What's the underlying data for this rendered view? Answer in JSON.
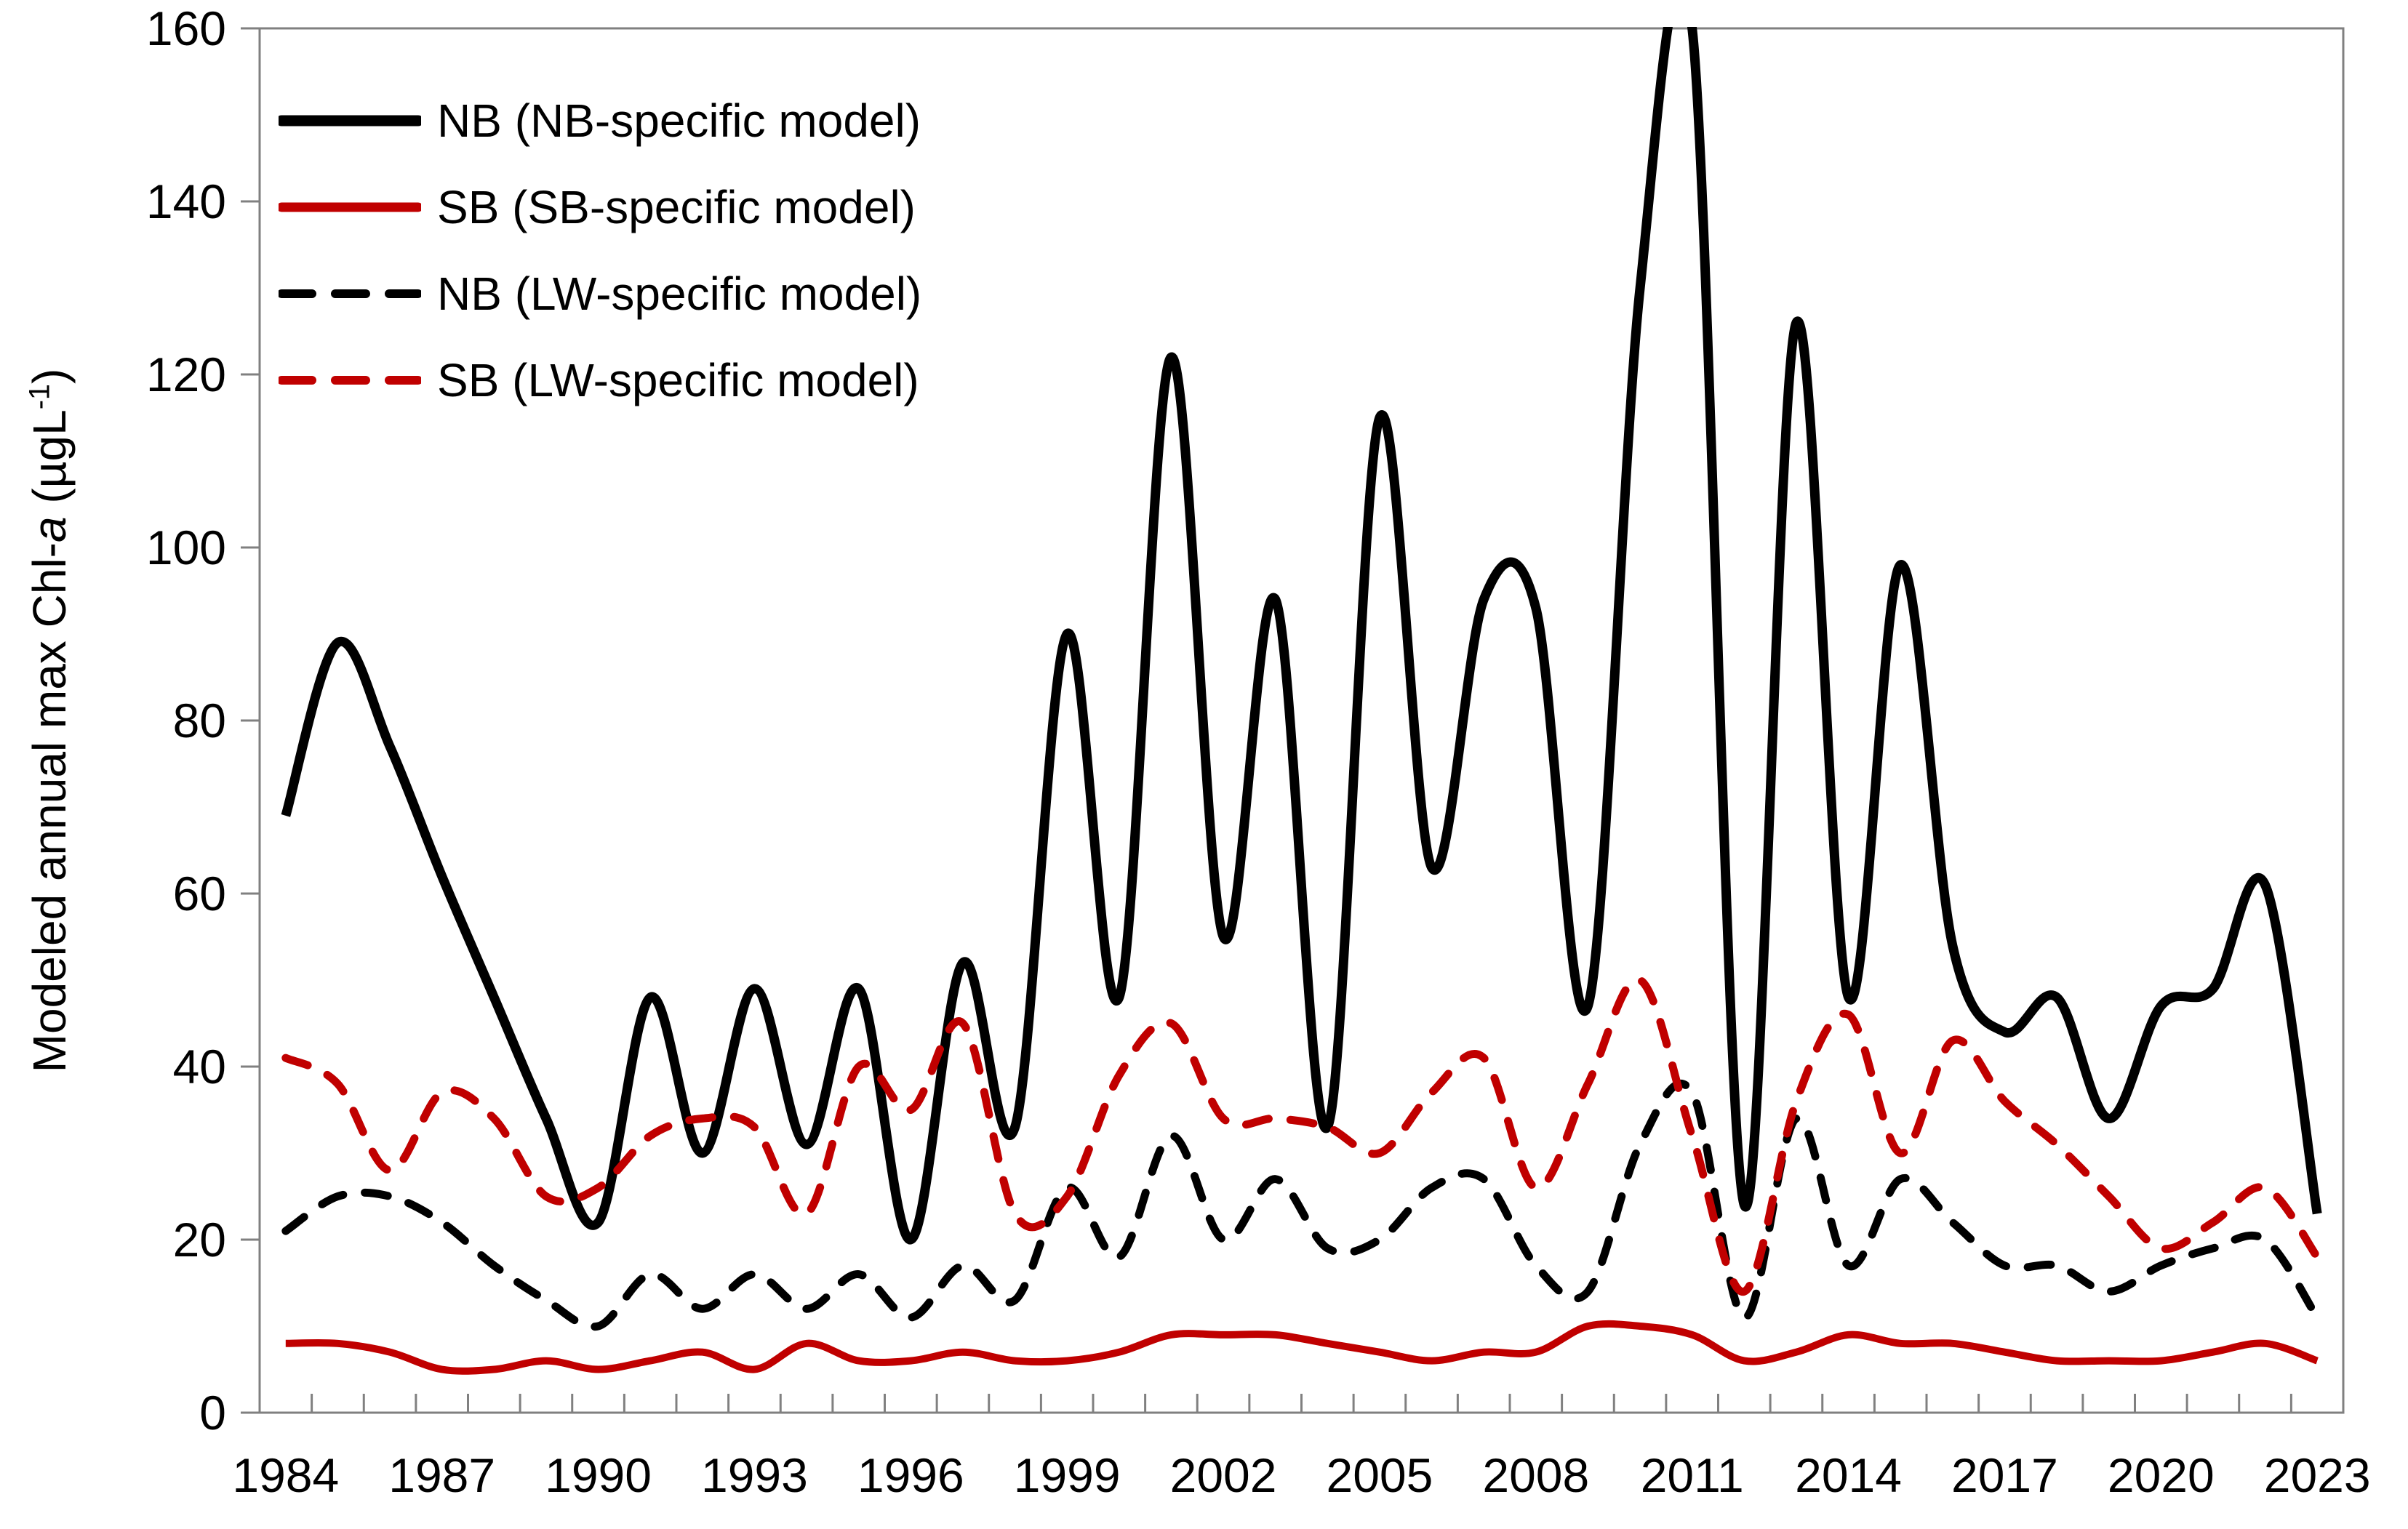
{
  "figure": {
    "background": "#ffffff",
    "accent_black": "#000000",
    "accent_red": "#C00000",
    "axis_color": "#808080"
  },
  "y_axis": {
    "title_prefix": "Modeled annual max Chl-",
    "title_italic": "a",
    "title_unit_open": " (µgL",
    "title_superscript": "-1",
    "title_close": ")",
    "tick_labels": [
      "0",
      "20",
      "40",
      "60",
      "80",
      "100",
      "120",
      "140",
      "160"
    ]
  },
  "x_axis": {
    "tick_labels": [
      "1984",
      "1987",
      "1990",
      "1993",
      "1996",
      "1999",
      "2002",
      "2005",
      "2008",
      "2011",
      "2014",
      "2017",
      "2020",
      "2023"
    ]
  },
  "legend": {
    "items": [
      {
        "label": "NB (NB-specific model)",
        "color": "#000000",
        "dash": "solid",
        "icon": "line-sample-black-solid"
      },
      {
        "label": "SB (SB-specific model)",
        "color": "#C00000",
        "dash": "solid",
        "icon": "line-sample-red-solid"
      },
      {
        "label": "NB (LW-specific model)",
        "color": "#000000",
        "dash": "dashed",
        "icon": "line-sample-black-dashed"
      },
      {
        "label": "SB (LW-specific model)",
        "color": "#C00000",
        "dash": "dashed",
        "icon": "line-sample-red-dashed"
      }
    ]
  },
  "chart_data": {
    "type": "line",
    "title": "",
    "xlabel": "",
    "ylabel": "Modeled annual max Chl-a (ugL-1)",
    "ylim": [
      0,
      160
    ],
    "y_tick_step": 20,
    "grid": false,
    "legend_position": "top-left",
    "smoothed_lines": true,
    "x": [
      1984,
      1985,
      1986,
      1987,
      1988,
      1989,
      1990,
      1991,
      1992,
      1993,
      1994,
      1995,
      1996,
      1997,
      1998,
      1999,
      2000,
      2001,
      2002,
      2003,
      2004,
      2005,
      2006,
      2007,
      2008,
      2009,
      2010,
      2011,
      2012,
      2013,
      2014,
      2015,
      2016,
      2017,
      2018,
      2019,
      2020,
      2021,
      2022,
      2023
    ],
    "x_labeled_years": [
      1984,
      1987,
      1990,
      1993,
      1996,
      1999,
      2002,
      2005,
      2008,
      2011,
      2014,
      2017,
      2020,
      2023
    ],
    "series": [
      {
        "name": "NB (NB-specific model)",
        "color": "#000000",
        "style": "solid",
        "stroke_width": 13,
        "values": [
          69,
          89,
          77,
          62,
          48,
          34,
          22,
          48,
          30,
          49,
          31,
          49,
          20,
          52,
          33,
          90,
          48,
          122,
          55,
          94,
          33,
          115,
          63,
          94,
          93,
          47,
          130,
          160,
          24,
          126,
          48,
          98,
          54,
          44,
          48,
          34,
          47,
          49,
          61,
          23
        ]
      },
      {
        "name": "SB (SB-specific model)",
        "color": "#C00000",
        "style": "solid",
        "stroke_width": 10,
        "values": [
          8,
          8,
          7,
          5,
          5,
          6,
          5,
          6,
          7,
          5,
          8,
          6,
          6,
          7,
          6,
          6,
          7,
          9,
          9,
          9,
          8,
          7,
          6,
          7,
          7,
          10,
          10,
          9,
          6,
          7,
          9,
          8,
          8,
          7,
          6,
          6,
          6,
          7,
          8,
          6
        ]
      },
      {
        "name": "NB (LW-specific model)",
        "color": "#000000",
        "style": "dashed",
        "stroke_width": 11,
        "values": [
          21,
          25,
          25,
          22,
          17,
          13,
          10,
          16,
          12,
          16,
          12,
          16,
          11,
          17,
          13,
          26,
          18,
          32,
          20,
          27,
          19,
          20,
          26,
          27,
          17,
          14,
          31,
          37,
          11,
          34,
          17,
          27,
          22,
          17,
          17,
          14,
          17,
          19,
          20,
          11
        ]
      },
      {
        "name": "SB (LW-specific model)",
        "color": "#C00000",
        "style": "dashed",
        "stroke_width": 11,
        "values": [
          41,
          38,
          28,
          37,
          34,
          25,
          26,
          32,
          34,
          33,
          23,
          40,
          35,
          45,
          23,
          25,
          39,
          45,
          34,
          34,
          33,
          30,
          37,
          41,
          26,
          38,
          50,
          32,
          14,
          36,
          46,
          30,
          43,
          36,
          31,
          25,
          19,
          22,
          26,
          18
        ]
      }
    ]
  }
}
